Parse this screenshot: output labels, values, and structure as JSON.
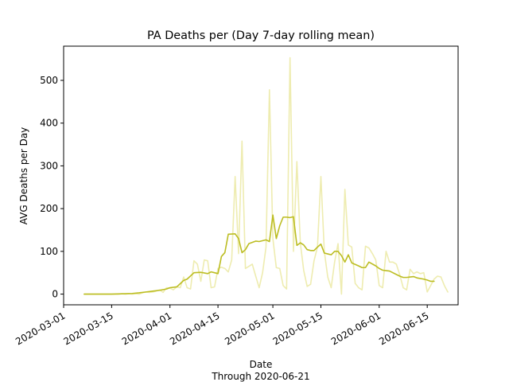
{
  "chart_data": {
    "type": "line",
    "title": "PA Deaths per (Day 7-day rolling mean)",
    "xlabel": "Date",
    "xlabel_sub": "Through 2020-06-21",
    "ylabel": "AVG Deaths per Day",
    "x_type": "date",
    "xlim": [
      "2020-03-01",
      "2020-06-24"
    ],
    "ylim": [
      -25,
      580
    ],
    "x_ticks": [
      "2020-03-01",
      "2020-03-15",
      "2020-04-01",
      "2020-04-15",
      "2020-05-01",
      "2020-05-15",
      "2020-06-01",
      "2020-06-15"
    ],
    "y_ticks": [
      0,
      100,
      200,
      300,
      400,
      500
    ],
    "grid": false,
    "colors": {
      "raw": "#eeecb0",
      "rolling": "#bcbd22"
    },
    "series": [
      {
        "key": "daily",
        "color": "#eeecb0",
        "points": [
          [
            "2020-03-07",
            0
          ],
          [
            "2020-03-08",
            0
          ],
          [
            "2020-03-09",
            0
          ],
          [
            "2020-03-10",
            0
          ],
          [
            "2020-03-11",
            0
          ],
          [
            "2020-03-12",
            0
          ],
          [
            "2020-03-13",
            0
          ],
          [
            "2020-03-14",
            0
          ],
          [
            "2020-03-15",
            0
          ],
          [
            "2020-03-16",
            0
          ],
          [
            "2020-03-17",
            0
          ],
          [
            "2020-03-18",
            1
          ],
          [
            "2020-03-19",
            0
          ],
          [
            "2020-03-20",
            1
          ],
          [
            "2020-03-21",
            0
          ],
          [
            "2020-03-22",
            1
          ],
          [
            "2020-03-23",
            0
          ],
          [
            "2020-03-24",
            3
          ],
          [
            "2020-03-25",
            5
          ],
          [
            "2020-03-26",
            4
          ],
          [
            "2020-03-27",
            5
          ],
          [
            "2020-03-28",
            7
          ],
          [
            "2020-03-29",
            10
          ],
          [
            "2020-03-30",
            4
          ],
          [
            "2020-03-31",
            15
          ],
          [
            "2020-04-01",
            14
          ],
          [
            "2020-04-02",
            10
          ],
          [
            "2020-04-03",
            17
          ],
          [
            "2020-04-04",
            15
          ],
          [
            "2020-04-05",
            40
          ],
          [
            "2020-04-06",
            15
          ],
          [
            "2020-04-07",
            12
          ],
          [
            "2020-04-08",
            78
          ],
          [
            "2020-04-09",
            70
          ],
          [
            "2020-04-10",
            30
          ],
          [
            "2020-04-11",
            80
          ],
          [
            "2020-04-12",
            78
          ],
          [
            "2020-04-13",
            15
          ],
          [
            "2020-04-14",
            17
          ],
          [
            "2020-04-15",
            60
          ],
          [
            "2020-04-16",
            63
          ],
          [
            "2020-04-17",
            60
          ],
          [
            "2020-04-18",
            52
          ],
          [
            "2020-04-19",
            80
          ],
          [
            "2020-04-20",
            275
          ],
          [
            "2020-04-21",
            95
          ],
          [
            "2020-04-22",
            358
          ],
          [
            "2020-04-23",
            60
          ],
          [
            "2020-04-24",
            65
          ],
          [
            "2020-04-25",
            70
          ],
          [
            "2020-04-26",
            42
          ],
          [
            "2020-04-27",
            15
          ],
          [
            "2020-04-28",
            50
          ],
          [
            "2020-04-29",
            110
          ],
          [
            "2020-04-30",
            478
          ],
          [
            "2020-05-01",
            130
          ],
          [
            "2020-05-02",
            62
          ],
          [
            "2020-05-03",
            60
          ],
          [
            "2020-05-04",
            20
          ],
          [
            "2020-05-05",
            12
          ],
          [
            "2020-05-06",
            553
          ],
          [
            "2020-05-07",
            100
          ],
          [
            "2020-05-08",
            310
          ],
          [
            "2020-05-09",
            120
          ],
          [
            "2020-05-10",
            55
          ],
          [
            "2020-05-11",
            18
          ],
          [
            "2020-05-12",
            23
          ],
          [
            "2020-05-13",
            78
          ],
          [
            "2020-05-14",
            110
          ],
          [
            "2020-05-15",
            275
          ],
          [
            "2020-05-16",
            100
          ],
          [
            "2020-05-17",
            40
          ],
          [
            "2020-05-18",
            15
          ],
          [
            "2020-05-19",
            75
          ],
          [
            "2020-05-20",
            118
          ],
          [
            "2020-05-21",
            0
          ],
          [
            "2020-05-22",
            245
          ],
          [
            "2020-05-23",
            115
          ],
          [
            "2020-05-24",
            110
          ],
          [
            "2020-05-25",
            25
          ],
          [
            "2020-05-26",
            15
          ],
          [
            "2020-05-27",
            10
          ],
          [
            "2020-05-28",
            112
          ],
          [
            "2020-05-29",
            108
          ],
          [
            "2020-05-30",
            95
          ],
          [
            "2020-05-31",
            80
          ],
          [
            "2020-06-01",
            20
          ],
          [
            "2020-06-02",
            15
          ],
          [
            "2020-06-03",
            100
          ],
          [
            "2020-06-04",
            75
          ],
          [
            "2020-06-05",
            75
          ],
          [
            "2020-06-06",
            70
          ],
          [
            "2020-06-07",
            45
          ],
          [
            "2020-06-08",
            15
          ],
          [
            "2020-06-09",
            10
          ],
          [
            "2020-06-10",
            58
          ],
          [
            "2020-06-11",
            48
          ],
          [
            "2020-06-12",
            52
          ],
          [
            "2020-06-13",
            48
          ],
          [
            "2020-06-14",
            50
          ],
          [
            "2020-06-15",
            5
          ],
          [
            "2020-06-16",
            20
          ],
          [
            "2020-06-17",
            35
          ],
          [
            "2020-06-18",
            42
          ],
          [
            "2020-06-19",
            40
          ],
          [
            "2020-06-20",
            20
          ],
          [
            "2020-06-21",
            5
          ]
        ]
      },
      {
        "key": "rolling",
        "color": "#bcbd22",
        "points": [
          [
            "2020-03-07",
            0
          ],
          [
            "2020-03-09",
            0
          ],
          [
            "2020-03-11",
            0
          ],
          [
            "2020-03-13",
            0
          ],
          [
            "2020-03-15",
            0
          ],
          [
            "2020-03-17",
            0.5
          ],
          [
            "2020-03-19",
            1
          ],
          [
            "2020-03-21",
            1.5
          ],
          [
            "2020-03-23",
            3
          ],
          [
            "2020-03-25",
            5
          ],
          [
            "2020-03-27",
            7
          ],
          [
            "2020-03-29",
            9
          ],
          [
            "2020-03-31",
            12
          ],
          [
            "2020-04-01",
            15
          ],
          [
            "2020-04-03",
            17
          ],
          [
            "2020-04-05",
            32
          ],
          [
            "2020-04-06",
            35
          ],
          [
            "2020-04-08",
            50
          ],
          [
            "2020-04-10",
            51
          ],
          [
            "2020-04-12",
            48
          ],
          [
            "2020-04-13",
            52
          ],
          [
            "2020-04-14",
            50
          ],
          [
            "2020-04-15",
            48
          ],
          [
            "2020-04-16",
            88
          ],
          [
            "2020-04-17",
            97
          ],
          [
            "2020-04-18",
            140
          ],
          [
            "2020-04-20",
            141
          ],
          [
            "2020-04-21",
            130
          ],
          [
            "2020-04-22",
            97
          ],
          [
            "2020-04-23",
            104
          ],
          [
            "2020-04-24",
            118
          ],
          [
            "2020-04-26",
            124
          ],
          [
            "2020-04-27",
            123
          ],
          [
            "2020-04-29",
            127
          ],
          [
            "2020-04-30",
            123
          ],
          [
            "2020-05-01",
            185
          ],
          [
            "2020-05-02",
            130
          ],
          [
            "2020-05-03",
            160
          ],
          [
            "2020-05-04",
            180
          ],
          [
            "2020-05-05",
            180
          ],
          [
            "2020-05-06",
            179
          ],
          [
            "2020-05-07",
            181
          ],
          [
            "2020-05-08",
            114
          ],
          [
            "2020-05-09",
            120
          ],
          [
            "2020-05-10",
            115
          ],
          [
            "2020-05-11",
            104
          ],
          [
            "2020-05-12",
            102
          ],
          [
            "2020-05-13",
            102
          ],
          [
            "2020-05-14",
            110
          ],
          [
            "2020-05-15",
            117
          ],
          [
            "2020-05-16",
            96
          ],
          [
            "2020-05-17",
            94
          ],
          [
            "2020-05-18",
            92
          ],
          [
            "2020-05-19",
            100
          ],
          [
            "2020-05-20",
            100
          ],
          [
            "2020-05-21",
            90
          ],
          [
            "2020-05-22",
            75
          ],
          [
            "2020-05-23",
            92
          ],
          [
            "2020-05-24",
            73
          ],
          [
            "2020-05-26",
            66
          ],
          [
            "2020-05-27",
            62
          ],
          [
            "2020-05-28",
            62
          ],
          [
            "2020-05-29",
            75
          ],
          [
            "2020-05-31",
            66
          ],
          [
            "2020-06-01",
            60
          ],
          [
            "2020-06-02",
            56
          ],
          [
            "2020-06-03",
            55
          ],
          [
            "2020-06-04",
            54
          ],
          [
            "2020-06-06",
            46
          ],
          [
            "2020-06-07",
            42
          ],
          [
            "2020-06-08",
            39
          ],
          [
            "2020-06-09",
            39
          ],
          [
            "2020-06-10",
            40
          ],
          [
            "2020-06-11",
            41
          ],
          [
            "2020-06-12",
            38
          ],
          [
            "2020-06-14",
            35
          ],
          [
            "2020-06-15",
            33
          ],
          [
            "2020-06-16",
            30
          ],
          [
            "2020-06-17",
            30
          ]
        ]
      }
    ]
  }
}
